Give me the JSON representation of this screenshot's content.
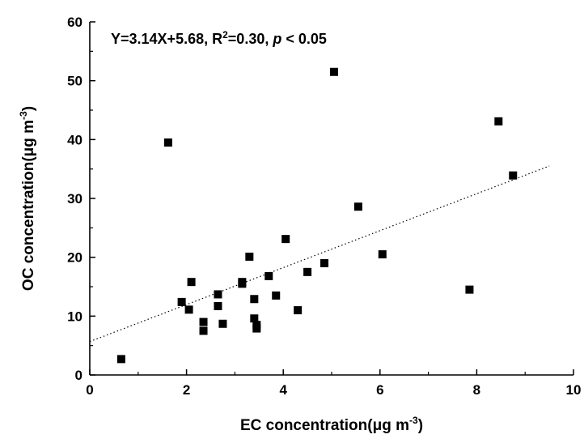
{
  "chart_data": {
    "type": "scatter",
    "title": "",
    "xlabel": "EC concentration",
    "xlabel_unit_prefix": "(μg m",
    "xlabel_unit_exp": "-3",
    "xlabel_unit_suffix": ")",
    "ylabel": "OC concentration",
    "ylabel_unit_prefix": "(μg m",
    "ylabel_unit_exp": "-3",
    "ylabel_unit_suffix": ")",
    "xlim": [
      0,
      10
    ],
    "ylim": [
      0,
      60
    ],
    "xticks": [
      "0",
      "2",
      "4",
      "6",
      "8",
      "10"
    ],
    "yticks": [
      "0",
      "10",
      "20",
      "30",
      "40",
      "50",
      "60"
    ],
    "grid": false,
    "marker": "square",
    "marker_color": "#000000",
    "annotation": {
      "eq_prefix": "Y=3.14X+5.68, R",
      "eq_sup": "2",
      "eq_mid": "=0.30, ",
      "eq_p": "p",
      "eq_suffix": " < 0.05"
    },
    "trendline": {
      "slope": 3.14,
      "intercept": 5.68,
      "x_range": [
        0,
        9.5
      ],
      "style": "dotted"
    },
    "points": [
      {
        "x": 0.65,
        "y": 2.7
      },
      {
        "x": 1.62,
        "y": 39.5
      },
      {
        "x": 1.9,
        "y": 12.4
      },
      {
        "x": 2.05,
        "y": 11.1
      },
      {
        "x": 2.1,
        "y": 15.8
      },
      {
        "x": 2.35,
        "y": 9.0
      },
      {
        "x": 2.35,
        "y": 7.5
      },
      {
        "x": 2.65,
        "y": 13.7
      },
      {
        "x": 2.65,
        "y": 11.7
      },
      {
        "x": 2.75,
        "y": 8.7
      },
      {
        "x": 3.15,
        "y": 15.8
      },
      {
        "x": 3.15,
        "y": 15.5
      },
      {
        "x": 3.3,
        "y": 20.1
      },
      {
        "x": 3.4,
        "y": 12.9
      },
      {
        "x": 3.4,
        "y": 9.6
      },
      {
        "x": 3.45,
        "y": 8.5
      },
      {
        "x": 3.45,
        "y": 7.9
      },
      {
        "x": 3.7,
        "y": 16.8
      },
      {
        "x": 3.85,
        "y": 13.5
      },
      {
        "x": 4.05,
        "y": 23.1
      },
      {
        "x": 4.3,
        "y": 11.0
      },
      {
        "x": 4.5,
        "y": 17.5
      },
      {
        "x": 4.85,
        "y": 19.0
      },
      {
        "x": 5.05,
        "y": 51.5
      },
      {
        "x": 5.55,
        "y": 28.6
      },
      {
        "x": 6.05,
        "y": 20.5
      },
      {
        "x": 7.85,
        "y": 14.5
      },
      {
        "x": 8.45,
        "y": 43.1
      },
      {
        "x": 8.75,
        "y": 33.9
      }
    ]
  }
}
